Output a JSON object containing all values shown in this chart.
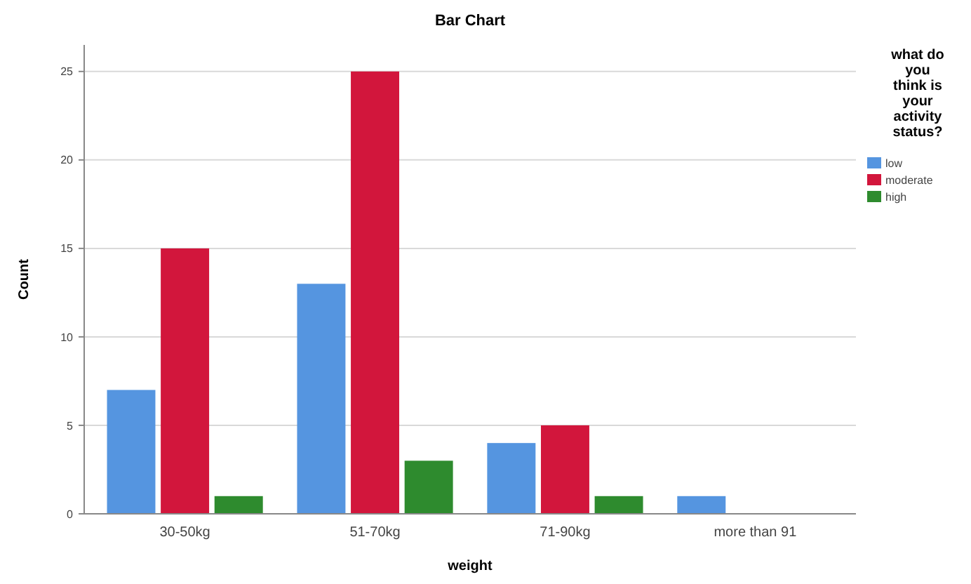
{
  "chart_data": {
    "type": "bar",
    "title": "Bar Chart",
    "xlabel": "weight",
    "ylabel": "Count",
    "legend_title": "what do you think is your activity status?",
    "categories": [
      "30-50kg",
      "51-70kg",
      "71-90kg",
      "more than 91"
    ],
    "series": [
      {
        "name": "low",
        "color": "#5595e0",
        "values": [
          7,
          13,
          4,
          1
        ]
      },
      {
        "name": "moderate",
        "color": "#d2163c",
        "values": [
          15,
          25,
          5,
          null
        ]
      },
      {
        "name": "high",
        "color": "#2e8b2e",
        "values": [
          1,
          3,
          1,
          null
        ]
      }
    ],
    "ylim": [
      0,
      26.5
    ],
    "yticks": [
      0,
      5,
      10,
      15,
      20,
      25
    ],
    "grid": "y",
    "legend": "right"
  }
}
